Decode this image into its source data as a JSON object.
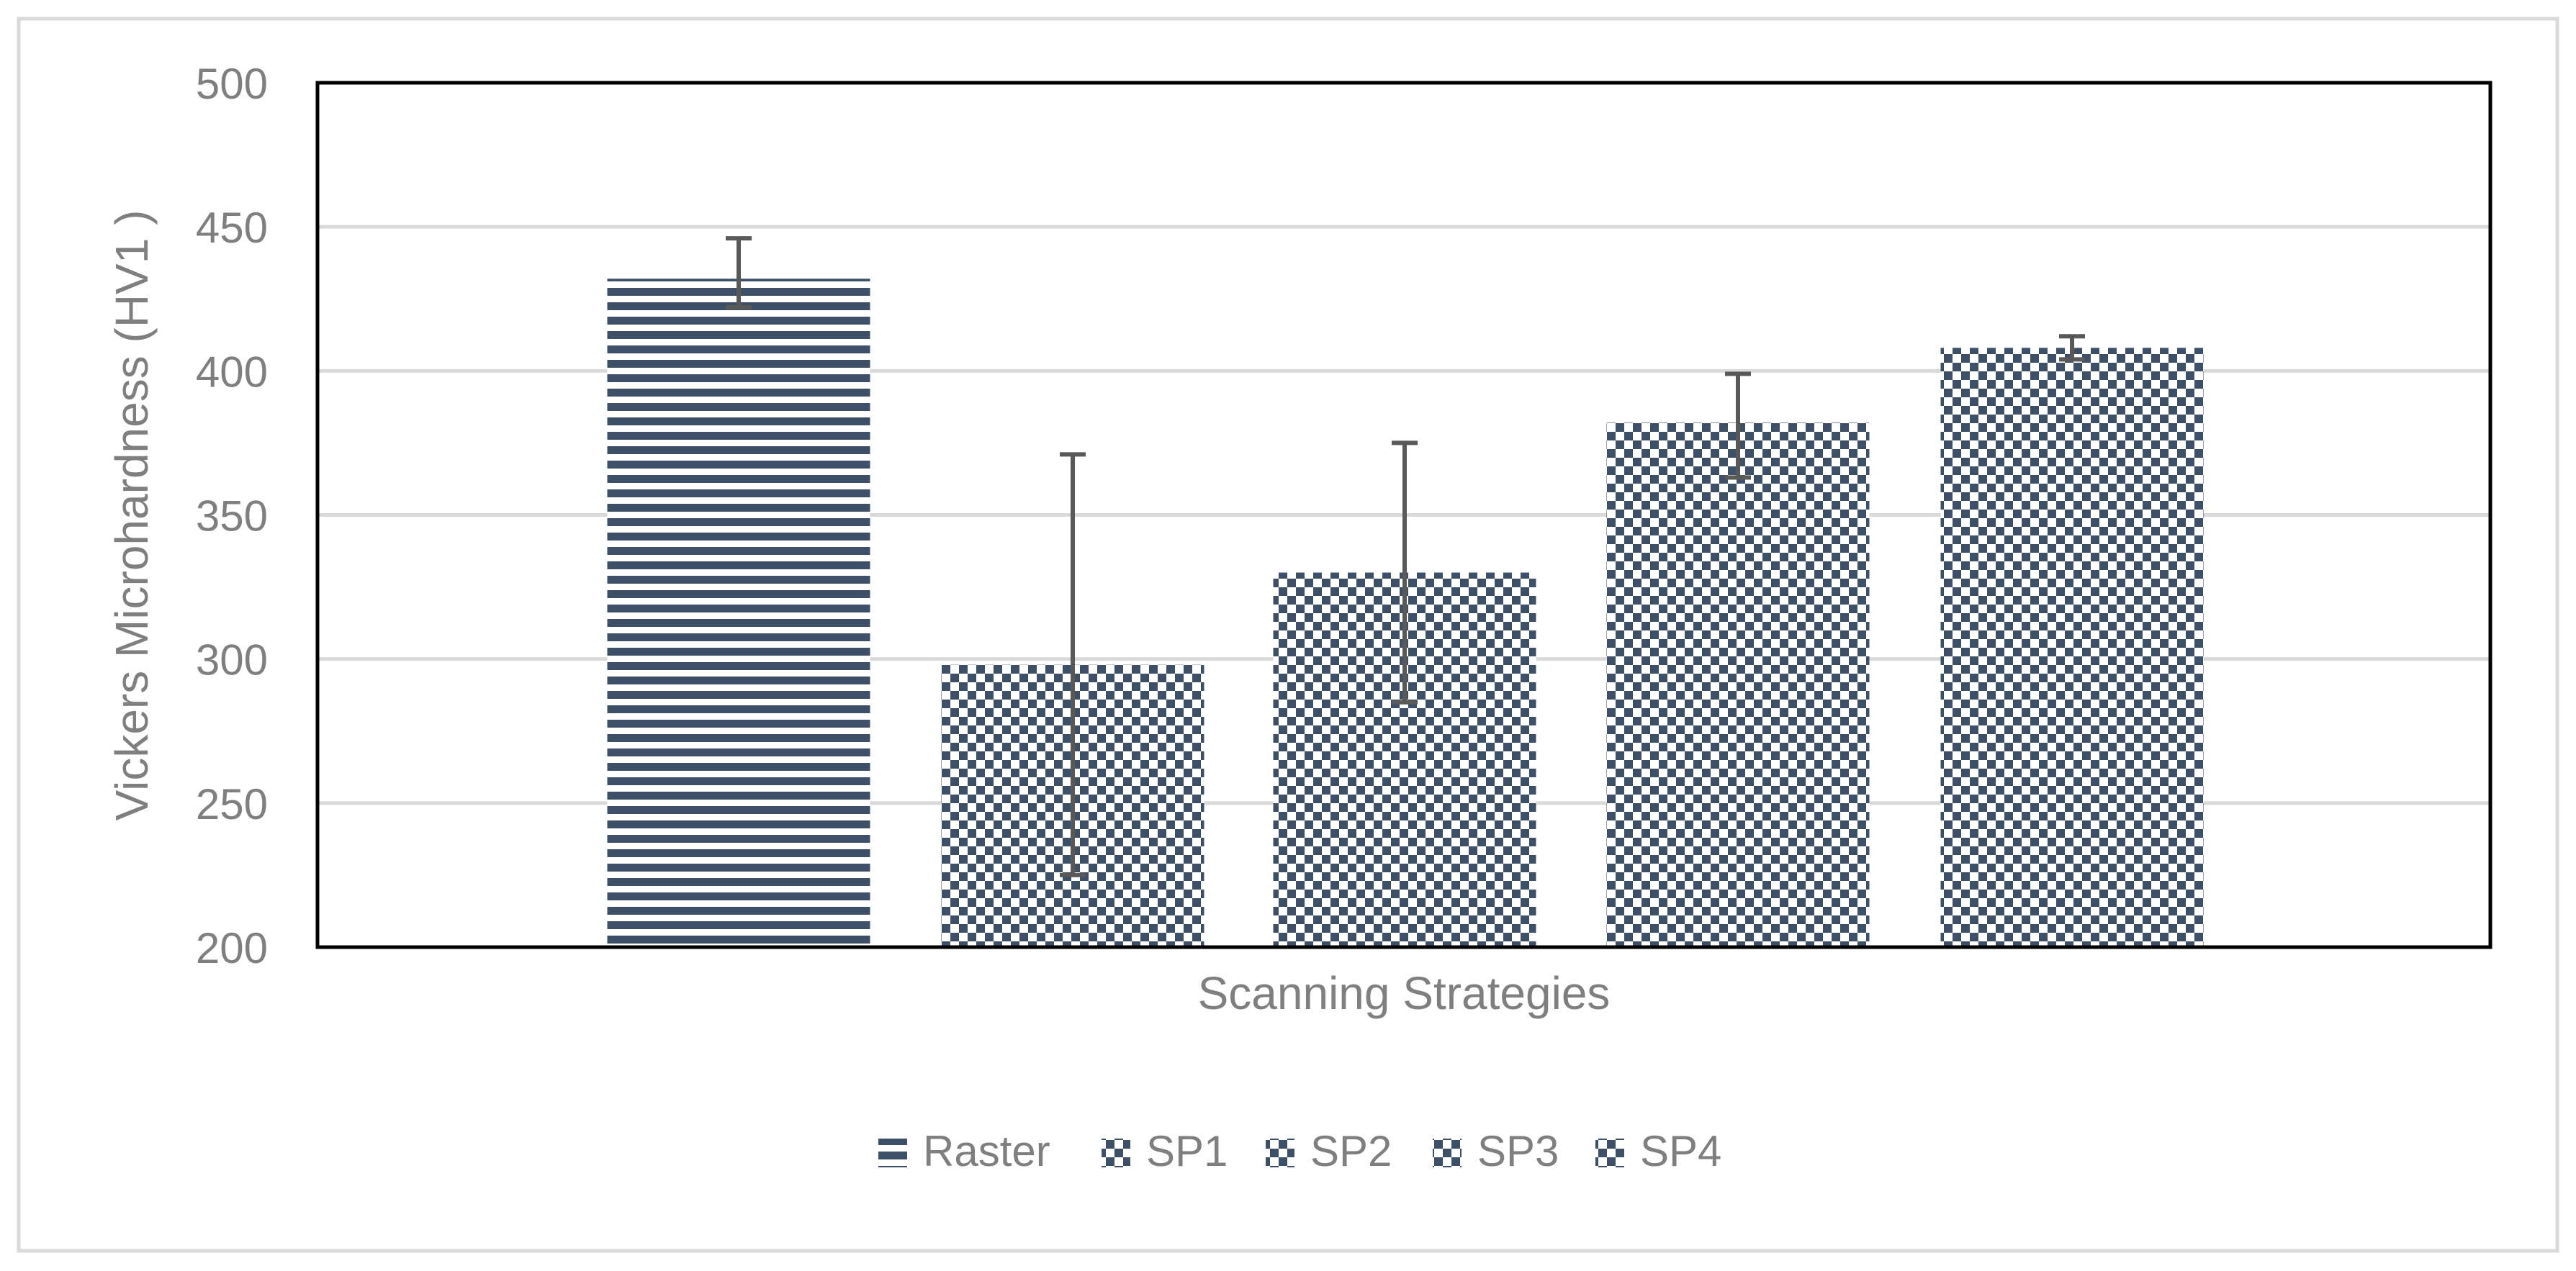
{
  "chart_data": {
    "type": "bar",
    "title": "",
    "xlabel": "Scanning Strategies",
    "ylabel": "Vickers Microhardness (HV1 )",
    "ylim": [
      200,
      500
    ],
    "yticks": [
      "500",
      "450",
      "400",
      "350",
      "300",
      "250",
      "200"
    ],
    "grid": true,
    "legend_position": "bottom",
    "series": [
      {
        "name": "Raster",
        "value": 432,
        "error_low": 422,
        "error_high": 446,
        "pattern": "horizontal-stripes"
      },
      {
        "name": "SP1",
        "value": 298,
        "error_low": 225,
        "error_high": 371,
        "pattern": "checker"
      },
      {
        "name": "SP2",
        "value": 330,
        "error_low": 285,
        "error_high": 375,
        "pattern": "checker"
      },
      {
        "name": "SP3",
        "value": 382,
        "error_low": 363,
        "error_high": 399,
        "pattern": "checker"
      },
      {
        "name": "SP4",
        "value": 408,
        "error_low": 404,
        "error_high": 412,
        "pattern": "checker"
      }
    ],
    "colors": {
      "bar": "#3e5068",
      "error_bar": "#595959",
      "grid": "#d9d9d9",
      "axis_text": "#7f7f7f",
      "plot_border": "#000000"
    }
  }
}
